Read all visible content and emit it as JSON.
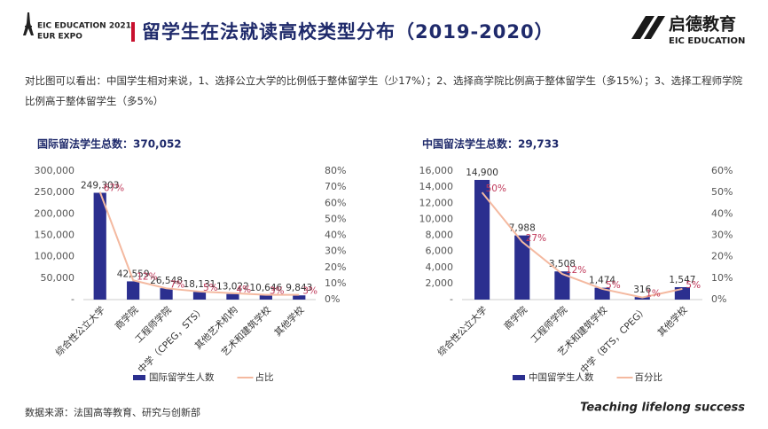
{
  "header": {
    "expo_line1": "EIC EDUCATION 2021",
    "expo_line2": "EUR EXPO",
    "title": "留学生在法就读高校类型分布（2019-2020）",
    "logo_cn": "启德教育",
    "logo_en": "EIC EDUCATION"
  },
  "description": "对比图可以看出：中国学生相对来说，1、选择公立大学的比例低于整体留学生（少17%）；2、选择商学院比例高于整体留学生（多15%）；3、选择工程师学院比例高于整体留学生（多5%）",
  "source": "数据来源：法国高等教育、研究与创新部",
  "slogan": "Teaching lifelong success",
  "chart_data": [
    {
      "type": "bar",
      "title": "国际留法学生总数：370,052",
      "categories": [
        "综合性公立大学",
        "商学院",
        "工程师学院",
        "中学（CPEG，STS）",
        "其他艺术机构",
        "艺术和建筑学校",
        "其他学校"
      ],
      "series": [
        {
          "name": "国际留学生人数",
          "type": "bar",
          "color": "#2b2f8f",
          "values": [
            249303,
            42559,
            26548,
            18131,
            13022,
            10646,
            9843
          ],
          "value_labels": [
            "249,303",
            "42,559",
            "26,548",
            "18,131",
            "13,022",
            "10,646",
            "9,843"
          ]
        },
        {
          "name": "占比",
          "type": "line",
          "axis": "y2",
          "color": "#f4b9a0",
          "values": [
            67,
            12,
            7,
            5,
            4,
            3,
            3
          ],
          "value_labels": [
            "67%",
            "12%",
            "7%",
            "5%",
            "4%",
            "3%",
            "3%"
          ]
        }
      ],
      "ylim": [
        0,
        300000
      ],
      "yticks": [
        {
          "value": 0,
          "label": "-"
        },
        {
          "value": 50000,
          "label": "50,000"
        },
        {
          "value": 100000,
          "label": "100,000"
        },
        {
          "value": 150000,
          "label": "150,000"
        },
        {
          "value": 200000,
          "label": "200,000"
        },
        {
          "value": 250000,
          "label": "250,000"
        },
        {
          "value": 300000,
          "label": "300,000"
        }
      ],
      "y2lim": [
        0,
        80
      ],
      "y2ticks": [
        {
          "value": 0,
          "label": "0%"
        },
        {
          "value": 10,
          "label": "10%"
        },
        {
          "value": 20,
          "label": "20%"
        },
        {
          "value": 30,
          "label": "30%"
        },
        {
          "value": 40,
          "label": "40%"
        },
        {
          "value": 50,
          "label": "50%"
        },
        {
          "value": 60,
          "label": "60%"
        },
        {
          "value": 70,
          "label": "70%"
        },
        {
          "value": 80,
          "label": "80%"
        }
      ]
    },
    {
      "type": "bar",
      "title": "中国留法学生总数：29,733",
      "categories": [
        "综合性公立大学",
        "商学院",
        "工程师学院",
        "艺术和建筑学校",
        "中学（BTS，CPEG）",
        "其他学校"
      ],
      "series": [
        {
          "name": "中国留学生人数",
          "type": "bar",
          "color": "#2b2f8f",
          "values": [
            14900,
            7988,
            3508,
            1474,
            316,
            1547
          ],
          "value_labels": [
            "14,900",
            "7,988",
            "3,508",
            "1,474",
            "316",
            "1,547"
          ]
        },
        {
          "name": "百分比",
          "type": "line",
          "axis": "y2",
          "color": "#f4b9a0",
          "values": [
            50,
            27,
            12,
            5,
            1,
            5
          ],
          "value_labels": [
            "50%",
            "27%",
            "12%",
            "5%",
            "1%",
            "5%"
          ]
        }
      ],
      "ylim": [
        0,
        16000
      ],
      "yticks": [
        {
          "value": 0,
          "label": "-"
        },
        {
          "value": 2000,
          "label": "2,000"
        },
        {
          "value": 4000,
          "label": "4,000"
        },
        {
          "value": 6000,
          "label": "6,000"
        },
        {
          "value": 8000,
          "label": "8,000"
        },
        {
          "value": 10000,
          "label": "10,000"
        },
        {
          "value": 12000,
          "label": "12,000"
        },
        {
          "value": 14000,
          "label": "14,000"
        },
        {
          "value": 16000,
          "label": "16,000"
        }
      ],
      "y2lim": [
        0,
        60
      ],
      "y2ticks": [
        {
          "value": 0,
          "label": "0%"
        },
        {
          "value": 10,
          "label": "10%"
        },
        {
          "value": 20,
          "label": "20%"
        },
        {
          "value": 30,
          "label": "30%"
        },
        {
          "value": 40,
          "label": "40%"
        },
        {
          "value": 50,
          "label": "50%"
        },
        {
          "value": 60,
          "label": "60%"
        }
      ]
    }
  ]
}
